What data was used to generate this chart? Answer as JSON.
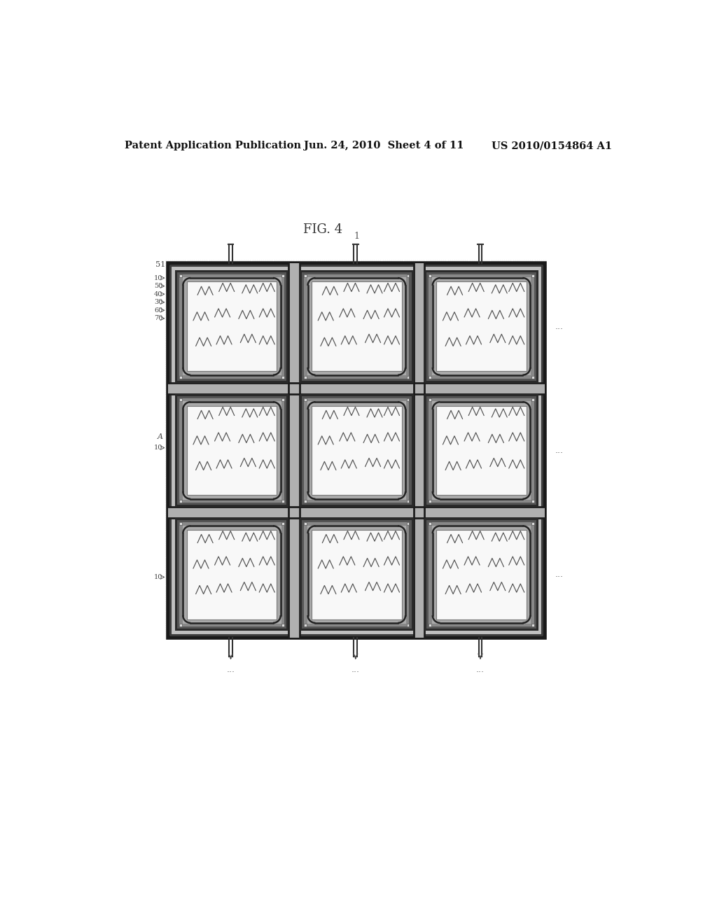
{
  "header_left": "Patent Application Publication",
  "header_mid": "Jun. 24, 2010  Sheet 4 of 11",
  "header_right": "US 2010/0154864 A1",
  "title": "FIG. 4",
  "bg_color": "#f5f5f5",
  "label_1": "1",
  "label_51": "51",
  "label_A": "A",
  "dots": "..."
}
